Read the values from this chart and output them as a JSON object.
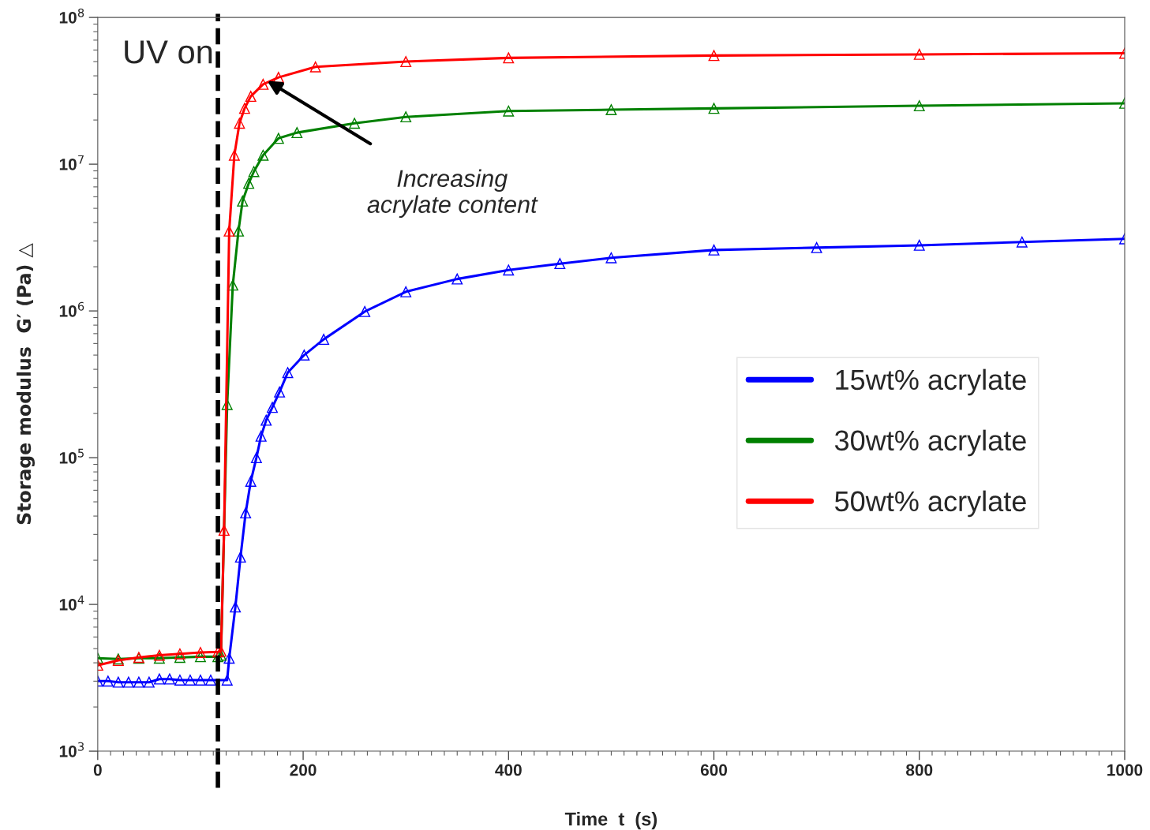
{
  "chart_data": {
    "type": "line",
    "xlabel": "Time  t  (s)",
    "ylabel": "Storage modulus  G′ (Pa) △",
    "log": "y",
    "xlim": [
      0,
      1000
    ],
    "xticks": [
      0,
      200,
      400,
      600,
      800,
      1000
    ],
    "ylim": [
      1000,
      100000000
    ],
    "yticks": [
      {
        "value": 1000,
        "label": "10$^{3}$"
      },
      {
        "value": 10000,
        "label": "10$^{4}$"
      },
      {
        "value": 100000,
        "label": "10$^{5}$"
      },
      {
        "value": 1000000,
        "label": "10$^{6}$"
      },
      {
        "value": 10000000,
        "label": "10$^{7}$"
      },
      {
        "value": 100000000,
        "label": "10$^{8}$"
      }
    ],
    "grid": false,
    "legend": "right",
    "marker": "triangle",
    "line_style": "solid",
    "series": [
      {
        "name": "15wt% acrylate",
        "color": "#0000ff",
        "x": [
          0,
          10,
          20,
          30,
          40,
          50,
          60,
          70,
          80,
          90,
          100,
          110,
          126,
          128,
          134,
          139,
          144,
          149,
          154.5,
          159,
          164,
          170,
          177,
          185,
          201,
          220,
          260,
          300,
          350,
          400,
          450,
          500,
          600,
          700,
          800,
          900,
          1000
        ],
        "values": [
          3000,
          3000,
          2950,
          2950,
          2950,
          2950,
          3100,
          3100,
          3050,
          3050,
          3050,
          3050,
          3050,
          4300,
          9600,
          21000,
          42000,
          69000,
          100000,
          140000,
          180000,
          220000,
          280000,
          380000,
          500000,
          640000,
          990000,
          1350000,
          1650000,
          1900000,
          2100000,
          2300000,
          2600000,
          2700000,
          2800000,
          2950000,
          3100000
        ]
      },
      {
        "name": "30wt% acrylate",
        "color": "#008000",
        "x": [
          0,
          20,
          40,
          60,
          80,
          100,
          117,
          120,
          126,
          131.5,
          137,
          141,
          147,
          152,
          161,
          176,
          194,
          250,
          300,
          400,
          500,
          600,
          800,
          1000
        ],
        "values": [
          4300,
          4250,
          4300,
          4300,
          4350,
          4400,
          4400,
          4500,
          230000,
          1500000,
          3500000,
          5600000,
          7400000,
          8900000,
          11500000,
          15000000,
          16400000,
          19000000,
          21000000,
          23000000,
          23500000,
          24000000,
          25000000,
          26000000
        ]
      },
      {
        "name": "50wt% acrylate",
        "color": "#ff0000",
        "x": [
          0,
          20,
          40,
          60,
          80,
          100,
          117,
          120,
          123,
          128,
          133,
          138,
          143,
          149,
          161,
          176,
          212,
          300,
          400,
          600,
          800,
          1000
        ],
        "values": [
          3850,
          4150,
          4350,
          4500,
          4600,
          4700,
          4750,
          4800,
          32000,
          3500000,
          11500000,
          19000000,
          24000000,
          29000000,
          35000000,
          39000000,
          46000000,
          50000000,
          53000000,
          55000000,
          56000000,
          57000000
        ]
      }
    ],
    "ref_lines": [
      {
        "axis": "x",
        "value": 117,
        "label": "UV on",
        "color": "#000000",
        "line_style": "dashed"
      }
    ],
    "annotations": [
      {
        "text": "Increasing\nacrylate content",
        "x": 165,
        "y": 37000000
      }
    ]
  }
}
